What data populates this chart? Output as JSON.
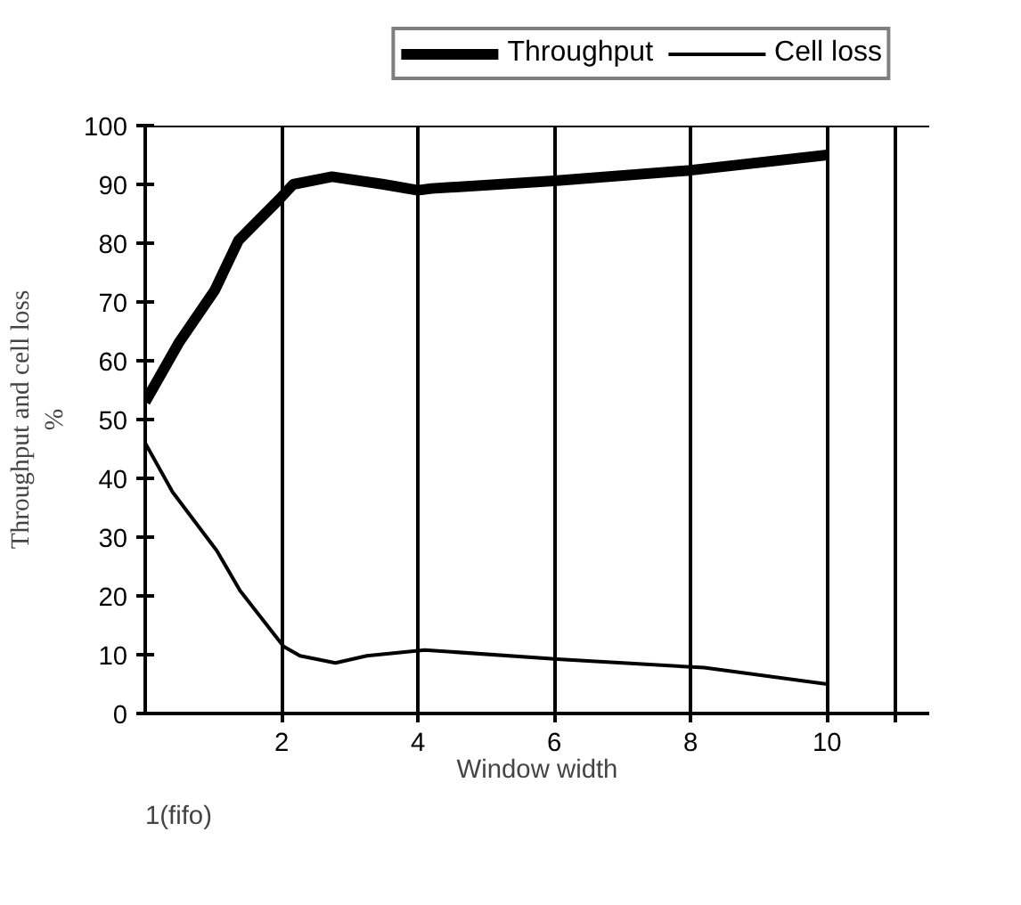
{
  "chart_data": {
    "type": "line",
    "xlabel": "Window width",
    "ylabel": "Throughput and cell loss\n%",
    "xlim": [
      0,
      11.5
    ],
    "ylim": [
      0,
      100
    ],
    "xticks": [
      2,
      4,
      6,
      8,
      10,
      {
        "value": 11,
        "label": null
      }
    ],
    "annotations": [
      "1(fifo)"
    ],
    "yticks": [
      0,
      10,
      20,
      30,
      40,
      50,
      60,
      70,
      80,
      90,
      100
    ],
    "grid": "x",
    "legend": "top right",
    "series": [
      {
        "name": "Throughput",
        "color": "#000000",
        "x": [
          0,
          0.49,
          1.02,
          1.37,
          1.97,
          2.17,
          2.74,
          3.5,
          4,
          4.2,
          6,
          8,
          10
        ],
        "values": [
          53,
          63,
          72,
          80.5,
          87.5,
          90,
          91.3,
          90,
          89,
          89.3,
          90.6,
          92.4,
          95
        ]
      },
      {
        "name": "Cell loss",
        "color": "#000000",
        "x": [
          0,
          0.4,
          1.05,
          1.39,
          2.03,
          2.27,
          2.79,
          3.25,
          4.1,
          6.1,
          8.2,
          10
        ],
        "values": [
          46,
          37.7,
          27.7,
          20.9,
          11.4,
          9.8,
          8.6,
          9.8,
          10.8,
          9.2,
          7.8,
          5
        ]
      }
    ]
  }
}
